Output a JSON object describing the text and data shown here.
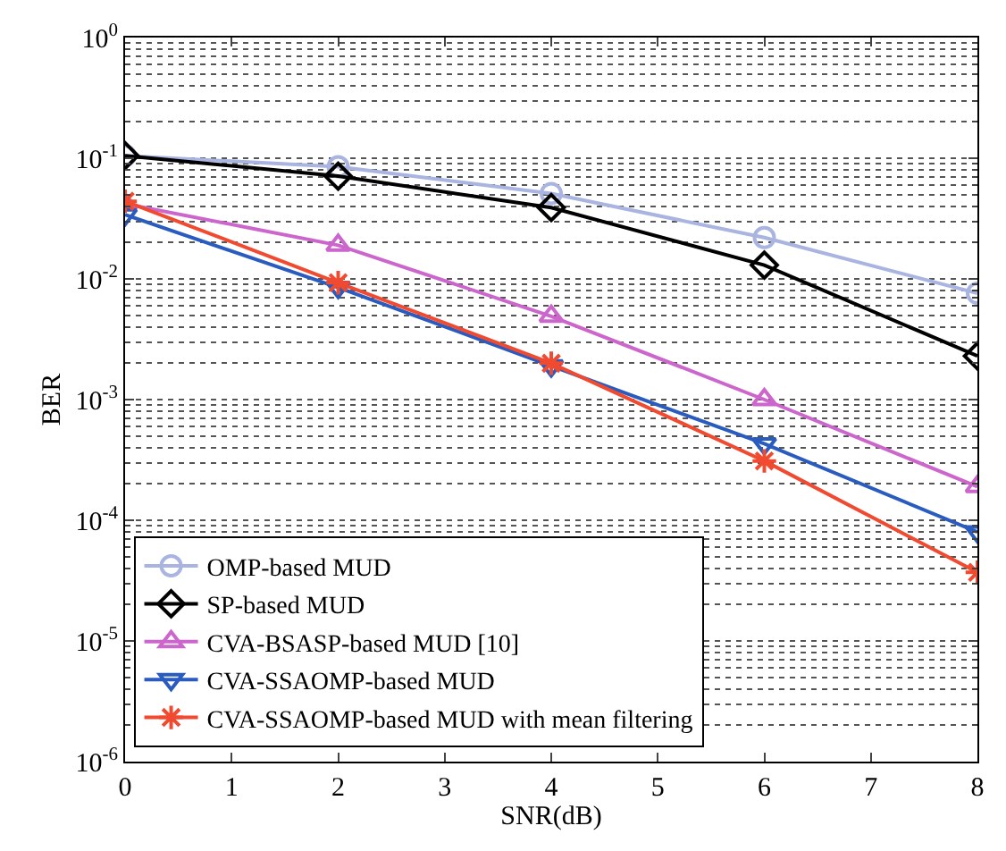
{
  "chart_data": {
    "type": "line",
    "xlabel": "SNR(dB)",
    "ylabel": "BER",
    "log": "y",
    "grid": "y",
    "legend": "bottom left",
    "x": [
      0,
      2,
      4,
      6,
      8
    ],
    "xlim": [
      0,
      8
    ],
    "xticks": [
      0,
      1,
      2,
      3,
      4,
      5,
      6,
      7,
      8
    ],
    "ylim": [
      1e-06,
      1
    ],
    "yticks": [
      {
        "value": 1e-06,
        "label": "10$^{-6}$"
      },
      {
        "value": 1e-05,
        "label": "10$^{-5}$"
      },
      {
        "value": 0.0001,
        "label": "10$^{-4}$"
      },
      {
        "value": 0.001,
        "label": "10$^{-3}$"
      },
      {
        "value": 0.01,
        "label": "10$^{-2}$"
      },
      {
        "value": 0.1,
        "label": "10$^{-1}$"
      },
      {
        "value": 1,
        "label": "10$^{0}$"
      }
    ],
    "series": [
      {
        "name": "OMP-based MUD",
        "color": "#a9b4e0",
        "marker": "circle",
        "values": [
          0.105,
          0.085,
          0.051,
          0.022,
          0.0076
        ]
      },
      {
        "name": "SP-based MUD",
        "color": "#000000",
        "marker": "diamond",
        "values": [
          0.105,
          0.071,
          0.039,
          0.013,
          0.0023
        ]
      },
      {
        "name": "CVA-BSASP-based MUD [10]",
        "color": "#cc66cc",
        "marker": "triangle",
        "values": [
          0.042,
          0.019,
          0.0049,
          0.001,
          0.00019
        ]
      },
      {
        "name": "CVA-SSAOMP-based MUD",
        "color": "#2a5cc0",
        "marker": "triangle-down",
        "values": [
          0.034,
          0.0085,
          0.0019,
          0.00043,
          8e-05
        ]
      },
      {
        "name": "CVA-SSAOMP-based MUD with mean filtering",
        "color": "#f04a30",
        "marker": "cross",
        "values": [
          0.044,
          0.0093,
          0.002,
          0.00031,
          3.7e-05
        ]
      }
    ]
  }
}
